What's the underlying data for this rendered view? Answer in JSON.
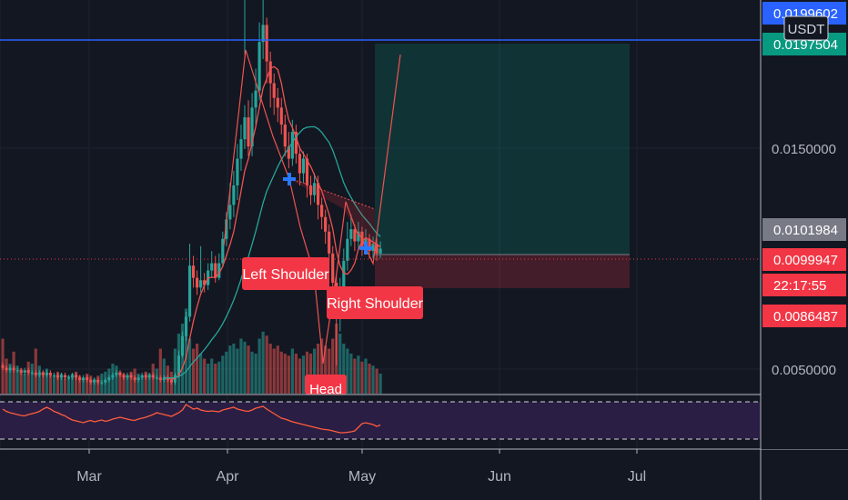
{
  "chart_data": {
    "type": "candlestick",
    "quote_currency": "USDT",
    "x_ticks": [
      "Mar",
      "Apr",
      "May",
      "Jun",
      "Jul"
    ],
    "y_ticks": [
      "0.0150000",
      "0.0050000"
    ],
    "price_labels": [
      {
        "text": "0.0199602",
        "value": 0.0199602,
        "color": "#2962ff"
      },
      {
        "text": "0.0197504",
        "value": 0.0197504,
        "color": "#089981"
      },
      {
        "text": "0.0101984",
        "value": 0.0101984,
        "color": "#787b86"
      },
      {
        "text": "0.0099947",
        "value": 0.0099947,
        "color": "#f23645"
      },
      {
        "text": "22:17:55",
        "value": null,
        "color": "#f23645"
      },
      {
        "text": "0.0086487",
        "value": 0.0086487,
        "color": "#f23645"
      }
    ],
    "candles": [
      [
        0.0052,
        0.0051,
        0.0053,
        0.005
      ],
      [
        0.0051,
        0.005,
        0.0052,
        0.0049
      ],
      [
        0.005,
        0.0051,
        0.0052,
        0.0049
      ],
      [
        0.0051,
        0.005,
        0.0052,
        0.0049
      ],
      [
        0.005,
        0.005,
        0.0051,
        0.0049
      ],
      [
        0.005,
        0.0049,
        0.0051,
        0.0048
      ],
      [
        0.0049,
        0.005,
        0.0051,
        0.0048
      ],
      [
        0.005,
        0.0049,
        0.0051,
        0.0048
      ],
      [
        0.0049,
        0.0049,
        0.005,
        0.0048
      ],
      [
        0.0049,
        0.0048,
        0.005,
        0.0047
      ],
      [
        0.0048,
        0.0049,
        0.005,
        0.0047
      ],
      [
        0.0049,
        0.0048,
        0.005,
        0.0047
      ],
      [
        0.0048,
        0.0049,
        0.005,
        0.0047
      ],
      [
        0.0049,
        0.0048,
        0.005,
        0.0047
      ],
      [
        0.0048,
        0.0048,
        0.0049,
        0.0047
      ],
      [
        0.0048,
        0.0047,
        0.0049,
        0.0046
      ],
      [
        0.0047,
        0.0048,
        0.0049,
        0.0046
      ],
      [
        0.0048,
        0.0047,
        0.0049,
        0.0046
      ],
      [
        0.0047,
        0.0047,
        0.0048,
        0.0046
      ],
      [
        0.0047,
        0.0048,
        0.0049,
        0.0046
      ],
      [
        0.0048,
        0.0047,
        0.0049,
        0.0046
      ],
      [
        0.0047,
        0.0046,
        0.0048,
        0.0045
      ],
      [
        0.0046,
        0.0047,
        0.0048,
        0.0045
      ],
      [
        0.0047,
        0.0046,
        0.0048,
        0.0045
      ],
      [
        0.0046,
        0.0045,
        0.0047,
        0.0044
      ],
      [
        0.0045,
        0.0046,
        0.0047,
        0.0044
      ],
      [
        0.0046,
        0.0045,
        0.0047,
        0.0044
      ],
      [
        0.0045,
        0.0045,
        0.0046,
        0.0044
      ],
      [
        0.0045,
        0.0046,
        0.0047,
        0.0044
      ],
      [
        0.0046,
        0.0047,
        0.0048,
        0.0045
      ],
      [
        0.0047,
        0.0048,
        0.0049,
        0.0046
      ],
      [
        0.0048,
        0.0049,
        0.005,
        0.0047
      ],
      [
        0.0049,
        0.0048,
        0.005,
        0.0047
      ],
      [
        0.0048,
        0.0047,
        0.0049,
        0.0046
      ],
      [
        0.0047,
        0.0048,
        0.0049,
        0.0046
      ],
      [
        0.0048,
        0.0047,
        0.0049,
        0.0046
      ],
      [
        0.0047,
        0.0046,
        0.0048,
        0.0045
      ],
      [
        0.0046,
        0.0047,
        0.0048,
        0.0045
      ],
      [
        0.0047,
        0.0048,
        0.0049,
        0.0046
      ],
      [
        0.0048,
        0.0047,
        0.0049,
        0.0046
      ],
      [
        0.0047,
        0.0048,
        0.0049,
        0.0046
      ],
      [
        0.0048,
        0.0047,
        0.0049,
        0.0046
      ],
      [
        0.0047,
        0.0047,
        0.0048,
        0.0046
      ],
      [
        0.0047,
        0.0046,
        0.0048,
        0.0045
      ],
      [
        0.0046,
        0.0047,
        0.0048,
        0.0045
      ],
      [
        0.0047,
        0.0046,
        0.0048,
        0.0045
      ],
      [
        0.0046,
        0.0045,
        0.0047,
        0.0044
      ],
      [
        0.0045,
        0.0048,
        0.0049,
        0.0044
      ],
      [
        0.0048,
        0.0056,
        0.0058,
        0.0047
      ],
      [
        0.0056,
        0.0064,
        0.0066,
        0.0055
      ],
      [
        0.0064,
        0.0072,
        0.0074,
        0.0062
      ],
      [
        0.0072,
        0.0093,
        0.0102,
        0.007
      ],
      [
        0.0093,
        0.0088,
        0.0097,
        0.0084
      ],
      [
        0.0088,
        0.0084,
        0.0091,
        0.0081
      ],
      [
        0.0084,
        0.0087,
        0.0101,
        0.0082
      ],
      [
        0.0087,
        0.0085,
        0.009,
        0.0082
      ],
      [
        0.0085,
        0.0091,
        0.0094,
        0.0083
      ],
      [
        0.0091,
        0.0094,
        0.0099,
        0.0088
      ],
      [
        0.0094,
        0.0088,
        0.0097,
        0.0086
      ],
      [
        0.0088,
        0.0094,
        0.0098,
        0.0087
      ],
      [
        0.0094,
        0.0104,
        0.0107,
        0.0093
      ],
      [
        0.0104,
        0.0112,
        0.0115,
        0.0101
      ],
      [
        0.0112,
        0.0118,
        0.0127,
        0.0108
      ],
      [
        0.0118,
        0.0126,
        0.0132,
        0.0113
      ],
      [
        0.0126,
        0.0137,
        0.0143,
        0.012
      ],
      [
        0.0137,
        0.0145,
        0.0151,
        0.0132
      ],
      [
        0.0145,
        0.0154,
        0.0159,
        0.0141
      ],
      [
        0.0154,
        0.0142,
        0.0161,
        0.0138
      ],
      [
        0.0142,
        0.0158,
        0.0164,
        0.0138
      ],
      [
        0.0158,
        0.0165,
        0.0174,
        0.0151
      ],
      [
        0.0165,
        0.0185,
        0.0193,
        0.0161
      ],
      [
        0.0185,
        0.0192,
        0.0232,
        0.0178
      ],
      [
        0.0192,
        0.0177,
        0.0195,
        0.0168
      ],
      [
        0.0177,
        0.0168,
        0.0181,
        0.0158
      ],
      [
        0.0168,
        0.0162,
        0.0172,
        0.0155
      ],
      [
        0.0162,
        0.0158,
        0.0166,
        0.0152
      ],
      [
        0.0158,
        0.0151,
        0.0162,
        0.0147
      ],
      [
        0.0151,
        0.0142,
        0.0155,
        0.0138
      ],
      [
        0.0142,
        0.0137,
        0.0148,
        0.0133
      ],
      [
        0.0137,
        0.0148,
        0.0153,
        0.0134
      ],
      [
        0.0148,
        0.0139,
        0.0151,
        0.0135
      ],
      [
        0.0139,
        0.0131,
        0.0142,
        0.0126
      ],
      [
        0.0131,
        0.0137,
        0.014,
        0.0127
      ],
      [
        0.0137,
        0.0126,
        0.0139,
        0.0121
      ],
      [
        0.0126,
        0.0122,
        0.013,
        0.0118
      ],
      [
        0.0122,
        0.0127,
        0.0131,
        0.0119
      ],
      [
        0.0127,
        0.0118,
        0.013,
        0.0112
      ],
      [
        0.0118,
        0.0113,
        0.0121,
        0.0108
      ],
      [
        0.0113,
        0.0107,
        0.0116,
        0.0102
      ],
      [
        0.0107,
        0.0098,
        0.011,
        0.0091
      ],
      [
        0.0098,
        0.0086,
        0.0101,
        0.0077
      ],
      [
        0.0086,
        0.0072,
        0.0089,
        0.0052
      ],
      [
        0.0072,
        0.0082,
        0.0088,
        0.0066
      ],
      [
        0.0082,
        0.0095,
        0.01,
        0.0079
      ],
      [
        0.0095,
        0.0104,
        0.0111,
        0.0091
      ],
      [
        0.0104,
        0.0108,
        0.0114,
        0.0101
      ],
      [
        0.0108,
        0.0103,
        0.011,
        0.0099
      ],
      [
        0.0103,
        0.0107,
        0.0111,
        0.01
      ],
      [
        0.0107,
        0.0101,
        0.0109,
        0.0097
      ],
      [
        0.0101,
        0.0104,
        0.0108,
        0.0098
      ],
      [
        0.0104,
        0.0099,
        0.0106,
        0.0096
      ],
      [
        0.0099,
        0.0102,
        0.0105,
        0.0096
      ],
      [
        0.0102,
        0.0098,
        0.0104,
        0.0095
      ],
      [
        0.0098,
        0.01,
        0.0103,
        0.0096
      ]
    ],
    "volume": [
      0.55,
      0.35,
      0.3,
      0.42,
      0.28,
      0.25,
      0.2,
      0.32,
      0.3,
      0.45,
      0.28,
      0.22,
      0.25,
      0.2,
      0.18,
      0.22,
      0.2,
      0.15,
      0.18,
      0.2,
      0.22,
      0.18,
      0.15,
      0.2,
      0.18,
      0.15,
      0.18,
      0.2,
      0.22,
      0.25,
      0.3,
      0.28,
      0.22,
      0.2,
      0.18,
      0.22,
      0.25,
      0.2,
      0.18,
      0.22,
      0.2,
      0.3,
      0.25,
      0.45,
      0.35,
      0.28,
      0.22,
      0.45,
      0.6,
      0.7,
      0.85,
      0.55,
      0.45,
      0.5,
      0.4,
      0.35,
      0.3,
      0.35,
      0.3,
      0.32,
      0.38,
      0.42,
      0.48,
      0.5,
      0.45,
      0.55,
      0.52,
      0.48,
      0.42,
      0.4,
      0.55,
      0.62,
      0.58,
      0.5,
      0.45,
      0.48,
      0.42,
      0.4,
      0.38,
      0.45,
      0.4,
      0.35,
      0.38,
      0.42,
      0.4,
      0.45,
      0.5,
      0.55,
      0.48,
      0.45,
      0.55,
      0.7,
      0.6,
      0.5,
      0.45,
      0.4,
      0.35,
      0.38,
      0.32,
      0.35,
      0.3,
      0.28,
      0.25,
      0.2
    ],
    "rsi": [
      60,
      55,
      52,
      50,
      48,
      46,
      45,
      48,
      50,
      52,
      55,
      60,
      64,
      60,
      55,
      52,
      48,
      45,
      40,
      36,
      34,
      32,
      30,
      33,
      35,
      32,
      34,
      36,
      33,
      35,
      38,
      40,
      42,
      40,
      38,
      36,
      35,
      38,
      40,
      42,
      45,
      48,
      52,
      50,
      48,
      46,
      44,
      48,
      52,
      58,
      70,
      65,
      60,
      62,
      58,
      56,
      55,
      56,
      55,
      54,
      58,
      60,
      62,
      64,
      60,
      58,
      56,
      55,
      58,
      62,
      64,
      66,
      60,
      55,
      50,
      45,
      40,
      38,
      35,
      32,
      30,
      28,
      26,
      24,
      22,
      20,
      18,
      16,
      15,
      14,
      12,
      10,
      8,
      8,
      9,
      10,
      12,
      20,
      28,
      30,
      28,
      26,
      22,
      25
    ]
  },
  "annotations": {
    "left_shoulder": "Left Shoulder",
    "right_shoulder": "Right Shoulder",
    "head": "Head"
  },
  "position": {
    "target": 0.0197504,
    "entry": 0.0101984,
    "stop": 0.0086487
  },
  "colors": {
    "bg": "#131722",
    "up": "#26a69a",
    "down": "#ef5350",
    "label_red": "#f23645",
    "blue_line": "#2962ff",
    "rsi_line": "#ff5c3c",
    "rsi_band": "#2a1e44"
  }
}
